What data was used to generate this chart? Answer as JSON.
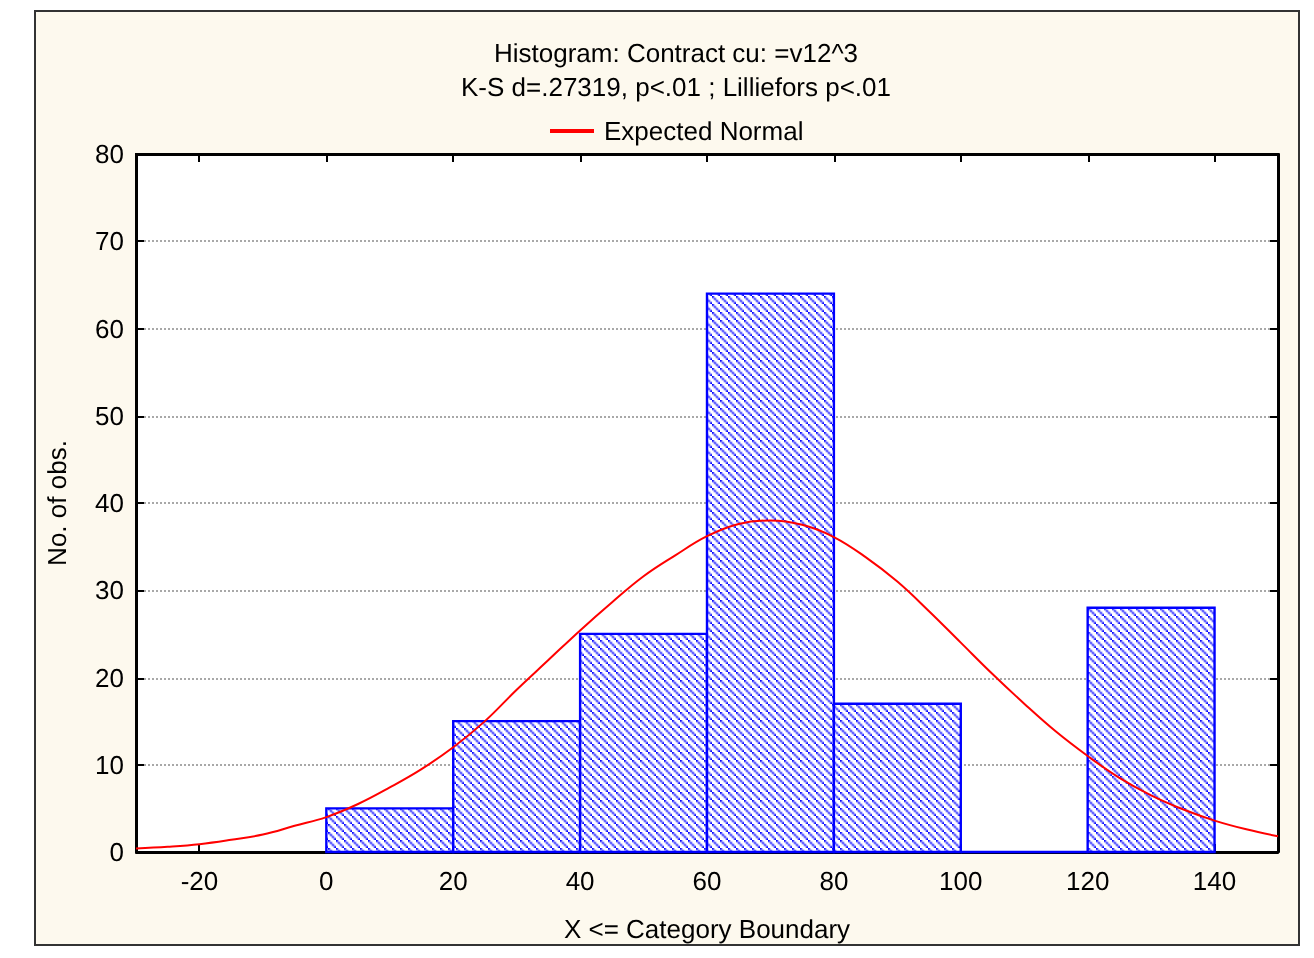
{
  "chart_data": {
    "type": "histogram",
    "title": "Histogram: Contract cu: =v12^3",
    "subtitle": "K-S d=.27319, p<.01 ; Lilliefors p<.01",
    "xlabel": "X <= Category Boundary",
    "ylabel": "No. of obs.",
    "bins": [
      0,
      20,
      40,
      60,
      80,
      100,
      120,
      140
    ],
    "values": [
      5,
      15,
      25,
      64,
      17,
      0,
      28
    ],
    "color": "#0000ff",
    "series": [
      {
        "name": "Expected Normal",
        "type": "line",
        "color": "#ff0000",
        "x": [
          -30,
          -25,
          -20,
          -15,
          -10,
          -5,
          0,
          5,
          10,
          15,
          20,
          25,
          30,
          35,
          40,
          45,
          50,
          55,
          60,
          65,
          70,
          75,
          80,
          85,
          90,
          95,
          100,
          105,
          110,
          115,
          120,
          125,
          130,
          135,
          140,
          145,
          150
        ],
        "values": [
          0.4,
          0.6,
          0.9,
          1.4,
          2,
          3,
          4,
          5.5,
          7.4,
          9.5,
          12,
          15,
          18.6,
          22,
          25.4,
          28.6,
          31.6,
          34,
          36.2,
          37.6,
          38,
          37.5,
          36.1,
          33.8,
          31,
          27.6,
          24,
          20.4,
          17,
          13.8,
          11,
          8.5,
          6.5,
          4.9,
          3.6,
          2.6,
          1.8
        ]
      }
    ],
    "xlim": [
      -30,
      150
    ],
    "xticks": [
      -20,
      0,
      20,
      40,
      60,
      80,
      100,
      120,
      140
    ],
    "ylim": [
      0,
      80
    ],
    "yticks": [
      0,
      10,
      20,
      30,
      40,
      50,
      60,
      70,
      80
    ],
    "grid": "y",
    "legend": "top",
    "marker": "none"
  }
}
